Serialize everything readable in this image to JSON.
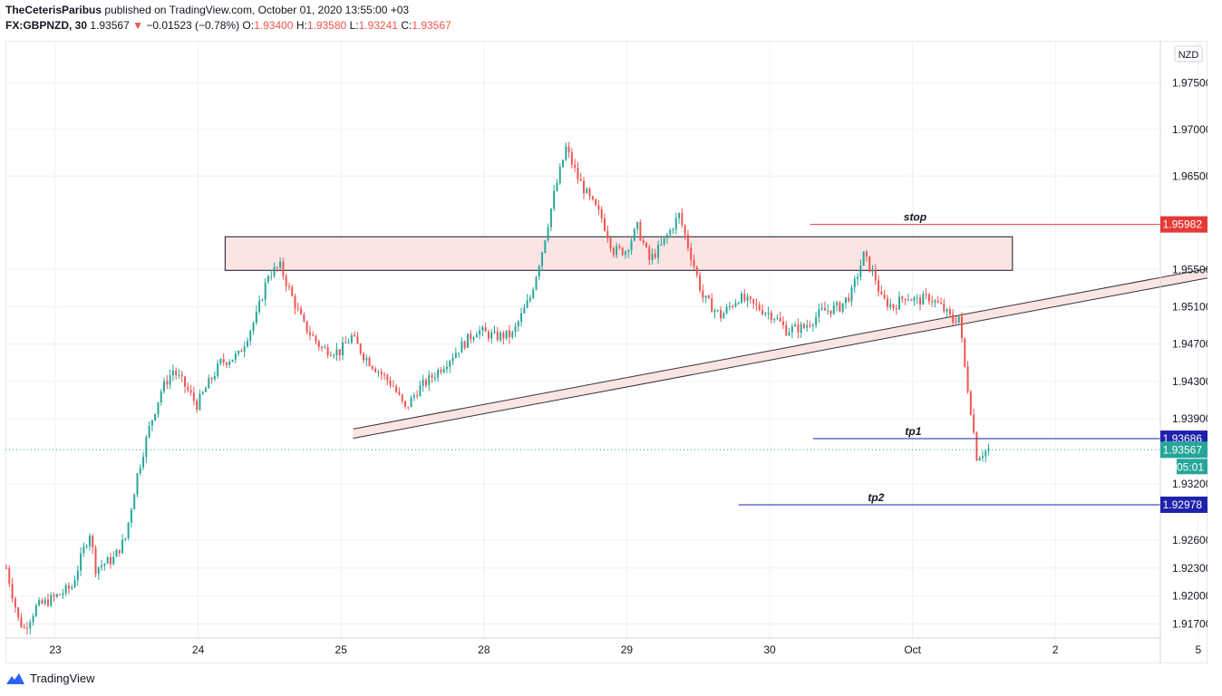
{
  "header": {
    "author": "TheCeterisParibus",
    "published": "published on TradingView.com, October 01, 2020 13:55:00 +03",
    "symbol": "FX:GBPNZD, 30",
    "last": "1.93567",
    "change_arrow": "▼",
    "change": "−0.01523 (−0.78%)",
    "o_label": "O:",
    "o_value": "1.93400",
    "h_label": "H:",
    "h_value": "1.93580",
    "l_label": "L:",
    "l_value": "1.93241",
    "c_label": "C:",
    "c_value": "1.93567"
  },
  "footer": {
    "brand": "TradingView",
    "logo_icon": "tradingview-logo-icon"
  },
  "colors": {
    "up": "#26a69a",
    "down": "#ef5350",
    "stop": "#e53935",
    "tp": "#1e22aa",
    "zone_fill": "#fbe4e4",
    "zone_stroke": "#131722",
    "grid": "#eef0f3",
    "current": "#26a69a"
  },
  "chart_data": {
    "type": "candlestick",
    "symbol": "FX:GBPNZD",
    "interval": "30",
    "currency_badge": "NZD",
    "ylim": [
      1.9155,
      1.9795
    ],
    "y_ticks": [
      "1.97500",
      "1.97000",
      "1.96500",
      "1.95500",
      "1.95100",
      "1.94700",
      "1.94300",
      "1.93900",
      "1.93200",
      "1.92600",
      "1.92300",
      "1.92000",
      "1.91700"
    ],
    "x_ticks": [
      "23",
      "24",
      "25",
      "28",
      "29",
      "30",
      "Oct",
      "2",
      "5"
    ],
    "x_tick_index": [
      0,
      48,
      96,
      144,
      192,
      240,
      288,
      336,
      384
    ],
    "bars_total": 388,
    "close_path": [
      [
        0,
        1.923
      ],
      [
        4,
        1.9175
      ],
      [
        6,
        1.9165
      ],
      [
        10,
        1.9188
      ],
      [
        16,
        1.9198
      ],
      [
        22,
        1.921
      ],
      [
        26,
        1.925
      ],
      [
        28,
        1.9268
      ],
      [
        30,
        1.923
      ],
      [
        36,
        1.924
      ],
      [
        40,
        1.9262
      ],
      [
        44,
        1.933
      ],
      [
        48,
        1.938
      ],
      [
        52,
        1.942
      ],
      [
        56,
        1.9442
      ],
      [
        60,
        1.9425
      ],
      [
        64,
        1.9405
      ],
      [
        68,
        1.9428
      ],
      [
        72,
        1.945
      ],
      [
        78,
        1.9458
      ],
      [
        84,
        1.95
      ],
      [
        88,
        1.9545
      ],
      [
        92,
        1.9553
      ],
      [
        96,
        1.952
      ],
      [
        100,
        1.949
      ],
      [
        106,
        1.9465
      ],
      [
        112,
        1.9462
      ],
      [
        116,
        1.9478
      ],
      [
        120,
        1.9458
      ],
      [
        126,
        1.9438
      ],
      [
        130,
        1.9425
      ],
      [
        134,
        1.94
      ],
      [
        138,
        1.942
      ],
      [
        144,
        1.9438
      ],
      [
        152,
        1.9465
      ],
      [
        158,
        1.9485
      ],
      [
        164,
        1.9478
      ],
      [
        170,
        1.948
      ],
      [
        176,
        1.952
      ],
      [
        180,
        1.957
      ],
      [
        184,
        1.963
      ],
      [
        188,
        1.968
      ],
      [
        192,
        1.9648
      ],
      [
        196,
        1.9625
      ],
      [
        200,
        1.9605
      ],
      [
        204,
        1.957
      ],
      [
        208,
        1.957
      ],
      [
        212,
        1.9595
      ],
      [
        216,
        1.956
      ],
      [
        220,
        1.9575
      ],
      [
        226,
        1.9608
      ],
      [
        230,
        1.9565
      ],
      [
        234,
        1.952
      ],
      [
        240,
        1.95
      ],
      [
        246,
        1.952
      ],
      [
        252,
        1.951
      ],
      [
        258,
        1.95
      ],
      [
        262,
        1.9485
      ],
      [
        268,
        1.9488
      ],
      [
        274,
        1.9505
      ],
      [
        280,
        1.951
      ],
      [
        284,
        1.9525
      ],
      [
        288,
        1.9565
      ],
      [
        292,
        1.954
      ],
      [
        294,
        1.9518
      ],
      [
        298,
        1.951
      ],
      [
        302,
        1.9522
      ],
      [
        306,
        1.9516
      ],
      [
        310,
        1.952
      ],
      [
        314,
        1.951
      ],
      [
        318,
        1.9495
      ],
      [
        320,
        1.95
      ],
      [
        322,
        1.9445
      ],
      [
        324,
        1.94
      ],
      [
        326,
        1.935
      ],
      [
        330,
        1.9357
      ]
    ],
    "zones": [
      {
        "name": "resistance-zone",
        "x1": 73.5,
        "x2": 338,
        "top": 1.9585,
        "bottom": 1.9549
      }
    ],
    "channel": {
      "x1": 116.5,
      "y1_top": 1.9379,
      "y1_bottom": 1.9369,
      "x2": 424,
      "y2_top": 1.9563,
      "y2_bottom": 1.9553
    },
    "levels": [
      {
        "label": "stop",
        "value": 1.95982,
        "tag": "1.95982",
        "x_start": 270,
        "color": "stop"
      },
      {
        "label": "tp1",
        "value": 1.93686,
        "tag": "1.93686",
        "x_start": 271,
        "color": "tp"
      },
      {
        "label": "tp2",
        "value": 1.92978,
        "tag": "1.92978",
        "x_start": 246,
        "color": "tp"
      }
    ],
    "current_price": {
      "value": 1.93567,
      "tag": "1.93567",
      "countdown": "05:01"
    }
  }
}
